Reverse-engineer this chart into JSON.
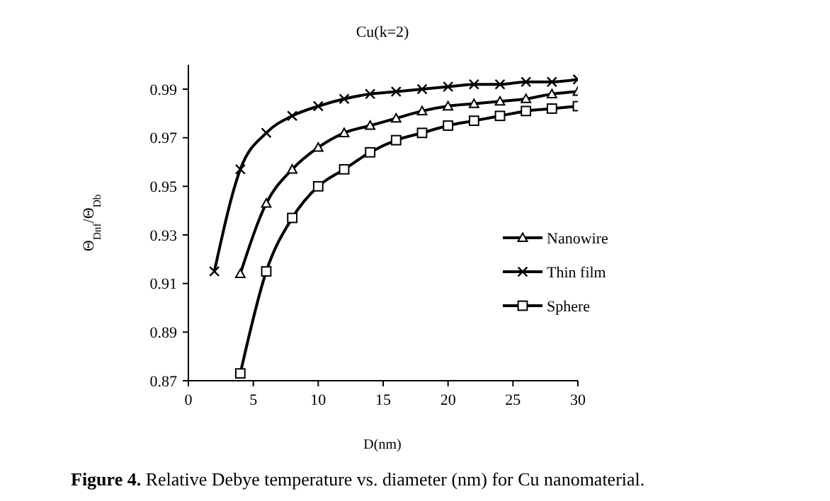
{
  "chart_data": {
    "type": "line",
    "title": "Cu(k=2)",
    "xlabel": "D(nm)",
    "ylabel": "Θ$_{Dnf}$/Θ$_{Db}$",
    "xlim": [
      0,
      30
    ],
    "xticks": [
      0,
      5,
      10,
      15,
      20,
      25,
      30
    ],
    "ylim": [
      0.87,
      1.0
    ],
    "yticks": [
      0.87,
      0.89,
      0.91,
      0.93,
      0.95,
      0.97,
      0.99
    ],
    "grid": false,
    "legend": "right",
    "line_style": "solid",
    "series": [
      {
        "name": "Nanowire",
        "color": "#000000",
        "marker": "triangle",
        "x": [
          4,
          6,
          8,
          10,
          12,
          14,
          16,
          18,
          20,
          22,
          24,
          26,
          28,
          30
        ],
        "values": [
          0.914,
          0.943,
          0.957,
          0.966,
          0.972,
          0.975,
          0.978,
          0.981,
          0.983,
          0.984,
          0.985,
          0.986,
          0.988,
          0.989
        ]
      },
      {
        "name": "Thin film",
        "color": "#000000",
        "marker": "cross",
        "x": [
          2,
          4,
          6,
          8,
          10,
          12,
          14,
          16,
          18,
          20,
          22,
          24,
          26,
          28,
          30
        ],
        "values": [
          0.915,
          0.957,
          0.972,
          0.979,
          0.983,
          0.986,
          0.988,
          0.989,
          0.99,
          0.991,
          0.992,
          0.992,
          0.993,
          0.993,
          0.994
        ]
      },
      {
        "name": "Sphere",
        "color": "#000000",
        "marker": "square",
        "x": [
          4,
          6,
          8,
          10,
          12,
          14,
          16,
          18,
          20,
          22,
          24,
          26,
          28,
          30
        ],
        "values": [
          0.873,
          0.915,
          0.937,
          0.95,
          0.957,
          0.964,
          0.969,
          0.972,
          0.975,
          0.977,
          0.979,
          0.981,
          0.982,
          0.983
        ]
      }
    ],
    "annotations": [
      "**Figure 4.** Relative Debye temperature vs. diameter (nm) for Cu nanomaterial."
    ]
  }
}
